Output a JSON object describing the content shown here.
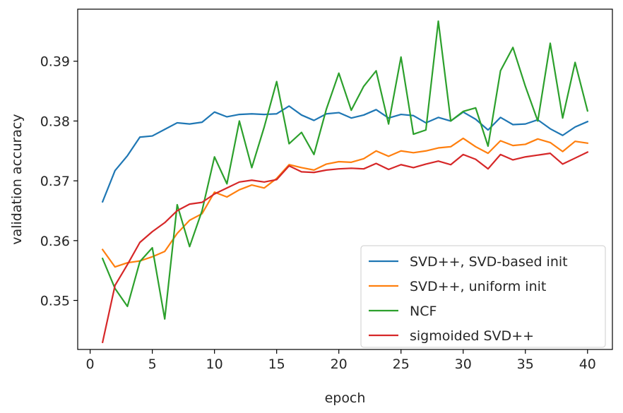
{
  "chart_data": {
    "type": "line",
    "title": "",
    "xlabel": "epoch",
    "ylabel": "validation accuracy",
    "xlim": [
      -1,
      42
    ],
    "ylim": [
      0.3418,
      0.3987
    ],
    "xticks": [
      0,
      5,
      10,
      15,
      20,
      25,
      30,
      35,
      40
    ],
    "xtick_labels": [
      "0",
      "5",
      "10",
      "15",
      "20",
      "25",
      "30",
      "35",
      "40"
    ],
    "yticks": [
      0.35,
      0.36,
      0.37,
      0.38,
      0.39
    ],
    "ytick_labels": [
      "0.35",
      "0.36",
      "0.37",
      "0.38",
      "0.39"
    ],
    "legend_position": "lower-right",
    "x": [
      1,
      2,
      3,
      4,
      5,
      6,
      7,
      8,
      9,
      10,
      11,
      12,
      13,
      14,
      15,
      16,
      17,
      18,
      19,
      20,
      21,
      22,
      23,
      24,
      25,
      26,
      27,
      28,
      29,
      30,
      31,
      32,
      33,
      34,
      35,
      36,
      37,
      38,
      39,
      40
    ],
    "series": [
      {
        "name": "SVD++, SVD-based init",
        "color": "#1f77b4",
        "values": [
          0.3665,
          0.3717,
          0.3742,
          0.3773,
          0.3775,
          0.3786,
          0.3797,
          0.3795,
          0.3798,
          0.3815,
          0.3807,
          0.3811,
          0.3812,
          0.3811,
          0.3812,
          0.3825,
          0.381,
          0.3801,
          0.3812,
          0.3814,
          0.3805,
          0.381,
          0.3819,
          0.3805,
          0.3811,
          0.3809,
          0.3797,
          0.3806,
          0.38,
          0.3815,
          0.3803,
          0.3785,
          0.3806,
          0.3794,
          0.3795,
          0.3802,
          0.3787,
          0.3776,
          0.379,
          0.3799
        ]
      },
      {
        "name": "SVD++, uniform init",
        "color": "#ff7f0e",
        "values": [
          0.3585,
          0.3556,
          0.3563,
          0.3566,
          0.3573,
          0.3582,
          0.3612,
          0.3634,
          0.3645,
          0.3681,
          0.3673,
          0.3685,
          0.3693,
          0.3688,
          0.3704,
          0.3727,
          0.3722,
          0.3718,
          0.3728,
          0.3732,
          0.3731,
          0.3737,
          0.375,
          0.3741,
          0.375,
          0.3747,
          0.375,
          0.3755,
          0.3757,
          0.3771,
          0.3757,
          0.3746,
          0.3767,
          0.3759,
          0.3761,
          0.377,
          0.3764,
          0.3749,
          0.3766,
          0.3763
        ]
      },
      {
        "name": "NCF",
        "color": "#2ca02c",
        "values": [
          0.357,
          0.352,
          0.349,
          0.3565,
          0.3588,
          0.3469,
          0.366,
          0.359,
          0.365,
          0.374,
          0.3695,
          0.38,
          0.3722,
          0.379,
          0.3866,
          0.3762,
          0.3781,
          0.3744,
          0.382,
          0.388,
          0.3818,
          0.3858,
          0.3884,
          0.3795,
          0.3907,
          0.3778,
          0.3785,
          0.3967,
          0.38,
          0.3816,
          0.3822,
          0.3758,
          0.3884,
          0.3923,
          0.3858,
          0.38,
          0.393,
          0.3805,
          0.3898,
          0.3817
        ]
      },
      {
        "name": "sigmoided SVD++",
        "color": "#d62728",
        "values": [
          0.343,
          0.3525,
          0.356,
          0.3597,
          0.3615,
          0.363,
          0.365,
          0.3661,
          0.3664,
          0.3678,
          0.3688,
          0.3698,
          0.3701,
          0.3698,
          0.3702,
          0.3725,
          0.3715,
          0.3714,
          0.3718,
          0.372,
          0.3721,
          0.372,
          0.3729,
          0.3719,
          0.3727,
          0.3722,
          0.3728,
          0.3733,
          0.3727,
          0.3744,
          0.3736,
          0.372,
          0.3744,
          0.3735,
          0.374,
          0.3743,
          0.3746,
          0.3728,
          0.3738,
          0.3748
        ]
      }
    ]
  }
}
